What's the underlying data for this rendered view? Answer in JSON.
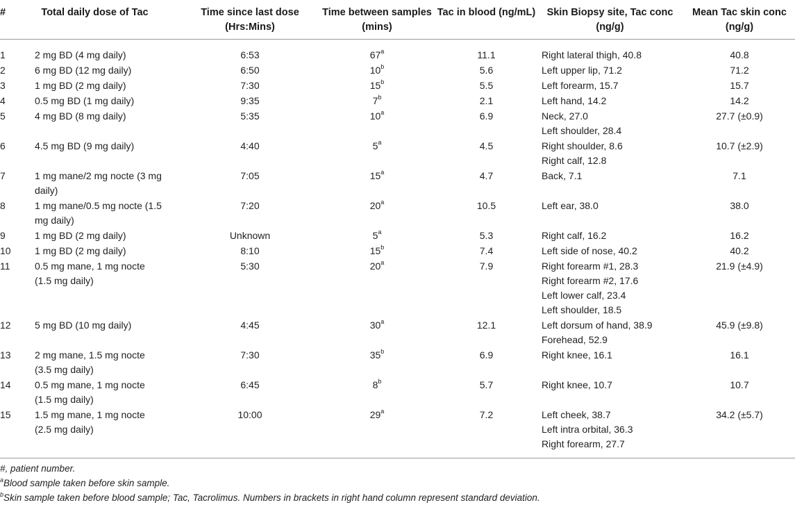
{
  "table": {
    "headers": {
      "num": "#",
      "dose": "Total daily dose of Tac",
      "time_since": "Time since last dose (Hrs:Mins)",
      "time_between": "Time between samples (mins)",
      "blood": "Tac in blood (ng/mL)",
      "site": "Skin Biopsy site, Tac conc (ng/g)",
      "mean": "Mean Tac skin conc (ng/g)"
    },
    "rows": [
      {
        "num": "1",
        "dose": "2 mg BD (4 mg daily)",
        "time_since": "6:53",
        "between": "67",
        "sup": "a",
        "blood": "11.1",
        "sites": [
          "Right lateral thigh, 40.8"
        ],
        "mean": "40.8"
      },
      {
        "num": "2",
        "dose": "6 mg BD (12 mg daily)",
        "time_since": "6:50",
        "between": "10",
        "sup": "b",
        "blood": "5.6",
        "sites": [
          "Left upper lip, 71.2"
        ],
        "mean": "71.2"
      },
      {
        "num": "3",
        "dose": "1 mg BD (2 mg daily)",
        "time_since": "7:30",
        "between": "15",
        "sup": "b",
        "blood": "5.5",
        "sites": [
          "Left forearm, 15.7"
        ],
        "mean": "15.7"
      },
      {
        "num": "4",
        "dose": "0.5 mg BD (1 mg daily)",
        "time_since": "9:35",
        "between": "7",
        "sup": "b",
        "blood": "2.1",
        "sites": [
          "Left hand, 14.2"
        ],
        "mean": "14.2"
      },
      {
        "num": "5",
        "dose": "4 mg BD (8 mg daily)",
        "time_since": "5:35",
        "between": "10",
        "sup": "a",
        "blood": "6.9",
        "sites": [
          "Neck, 27.0",
          "Left shoulder, 28.4"
        ],
        "mean": "27.7 (±0.9)"
      },
      {
        "num": "6",
        "dose": "4.5 mg BD (9 mg daily)",
        "time_since": "4:40",
        "between": "5",
        "sup": "a",
        "blood": "4.5",
        "sites": [
          "Right shoulder, 8.6",
          "Right calf, 12.8"
        ],
        "mean": "10.7 (±2.9)"
      },
      {
        "num": "7",
        "dose": "1 mg mane/2 mg nocte (3 mg daily)",
        "time_since": "7:05",
        "between": "15",
        "sup": "a",
        "blood": "4.7",
        "sites": [
          "Back, 7.1"
        ],
        "mean": "7.1"
      },
      {
        "num": "8",
        "dose": "1 mg mane/0.5 mg nocte (1.5 mg daily)",
        "time_since": "7:20",
        "between": "20",
        "sup": "a",
        "blood": "10.5",
        "sites": [
          "Left ear, 38.0"
        ],
        "mean": "38.0"
      },
      {
        "num": "9",
        "dose": "1 mg BD (2 mg daily)",
        "time_since": "Unknown",
        "between": "5",
        "sup": "a",
        "blood": "5.3",
        "sites": [
          "Right calf, 16.2"
        ],
        "mean": "16.2"
      },
      {
        "num": "10",
        "dose": "1 mg BD (2 mg daily)",
        "time_since": "8:10",
        "between": "15",
        "sup": "b",
        "blood": "7.4",
        "sites": [
          "Left side of nose, 40.2"
        ],
        "mean": "40.2"
      },
      {
        "num": "11",
        "dose": "0.5 mg mane, 1 mg nocte (1.5 mg daily)",
        "time_since": "5:30",
        "between": "20",
        "sup": "a",
        "blood": "7.9",
        "sites": [
          "Right forearm #1, 28.3",
          "Right forearm #2, 17.6",
          "Left lower calf, 23.4",
          "Left shoulder, 18.5"
        ],
        "mean": "21.9 (±4.9)"
      },
      {
        "num": "12",
        "dose": "5 mg BD (10 mg daily)",
        "time_since": "4:45",
        "between": "30",
        "sup": "a",
        "blood": "12.1",
        "sites": [
          "Left dorsum of hand, 38.9",
          "Forehead, 52.9"
        ],
        "mean": "45.9 (±9.8)"
      },
      {
        "num": "13",
        "dose": "2 mg mane, 1.5 mg nocte (3.5 mg daily)",
        "time_since": "7:30",
        "between": "35",
        "sup": "b",
        "blood": "6.9",
        "sites": [
          "Right knee, 16.1"
        ],
        "mean": "16.1"
      },
      {
        "num": "14",
        "dose": "0.5 mg mane, 1 mg nocte (1.5 mg daily)",
        "time_since": "6:45",
        "between": "8",
        "sup": "b",
        "blood": "5.7",
        "sites": [
          "Right knee, 10.7"
        ],
        "mean": "10.7"
      },
      {
        "num": "15",
        "dose": "1.5 mg mane, 1 mg nocte (2.5 mg daily)",
        "time_since": "10:00",
        "between": "29",
        "sup": "a",
        "blood": "7.2",
        "sites": [
          "Left cheek, 38.7",
          "Left intra orbital, 36.3",
          "Right forearm, 27.7"
        ],
        "mean": "34.2 (±5.7)"
      }
    ]
  },
  "footnotes": {
    "patient": "#, patient number.",
    "a_mark": "a",
    "a_text": "Blood sample taken before skin sample.",
    "b_mark": "b",
    "b_text": "Skin sample taken before blood sample; Tac, Tacrolimus. Numbers in brackets in right hand column represent standard deviation."
  }
}
